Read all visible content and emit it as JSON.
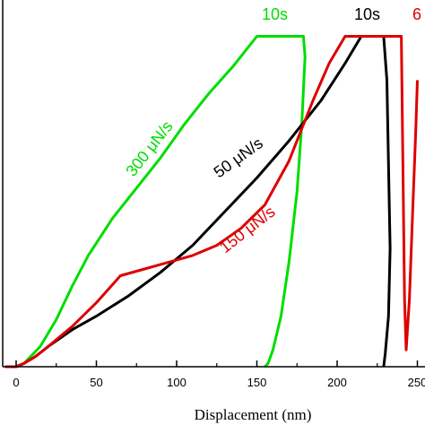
{
  "chart_data": {
    "type": "line",
    "title": "",
    "xlabel": "Displacement (nm)",
    "ylabel": "",
    "xlim": [
      -7,
      250
    ],
    "ylim": [
      0,
      1
    ],
    "x_ticks": [
      0,
      50,
      100,
      150,
      200,
      250
    ],
    "x_tick_labels": [
      "0",
      "50",
      "100",
      "150",
      "200",
      "250"
    ],
    "grid": false,
    "series": [
      {
        "color": "#00dd00",
        "x": [
          -7,
          0,
          5,
          15,
          25,
          35,
          45,
          60,
          75,
          90,
          105,
          120,
          135,
          150,
          179,
          180,
          178,
          175,
          170,
          165,
          160,
          157,
          155
        ],
        "y": [
          0,
          0,
          0.01,
          0.06,
          0.14,
          0.24,
          0.33,
          0.44,
          0.53,
          0.62,
          0.72,
          0.81,
          0.89,
          0.98,
          0.98,
          0.92,
          0.72,
          0.52,
          0.31,
          0.15,
          0.05,
          0.01,
          0
        ]
      },
      {
        "color": "#000000",
        "x": [
          -7,
          0,
          5,
          12,
          20,
          35,
          50,
          70,
          90,
          110,
          130,
          150,
          170,
          190,
          205,
          215,
          229,
          231,
          232,
          233,
          232,
          230,
          229
        ],
        "y": [
          0,
          0,
          0.01,
          0.03,
          0.06,
          0.11,
          0.15,
          0.21,
          0.28,
          0.36,
          0.46,
          0.56,
          0.67,
          0.79,
          0.9,
          0.98,
          0.98,
          0.85,
          0.6,
          0.35,
          0.15,
          0.04,
          0
        ]
      },
      {
        "color": "#dd0000",
        "x": [
          -7,
          0,
          5,
          12,
          20,
          35,
          50,
          65,
          80,
          95,
          110,
          125,
          140,
          155,
          170,
          185,
          195,
          205,
          240,
          242,
          243,
          245,
          247,
          249,
          250
        ],
        "y": [
          0,
          0,
          0.01,
          0.03,
          0.06,
          0.12,
          0.19,
          0.27,
          0.29,
          0.31,
          0.33,
          0.36,
          0.41,
          0.48,
          0.61,
          0.79,
          0.9,
          0.98,
          0.98,
          0.2,
          0.05,
          0.2,
          0.45,
          0.7,
          0.85
        ]
      }
    ],
    "annotations": [
      {
        "text": "10s",
        "color": "#00dd00"
      },
      {
        "text": "10s",
        "color": "#000000"
      },
      {
        "text": "6",
        "color": "#dd0000"
      },
      {
        "text": "300 μN/s",
        "color": "#00dd00"
      },
      {
        "text": "50 μN/s",
        "color": "#000000"
      },
      {
        "text": "150 μN/s",
        "color": "#dd0000"
      }
    ]
  }
}
